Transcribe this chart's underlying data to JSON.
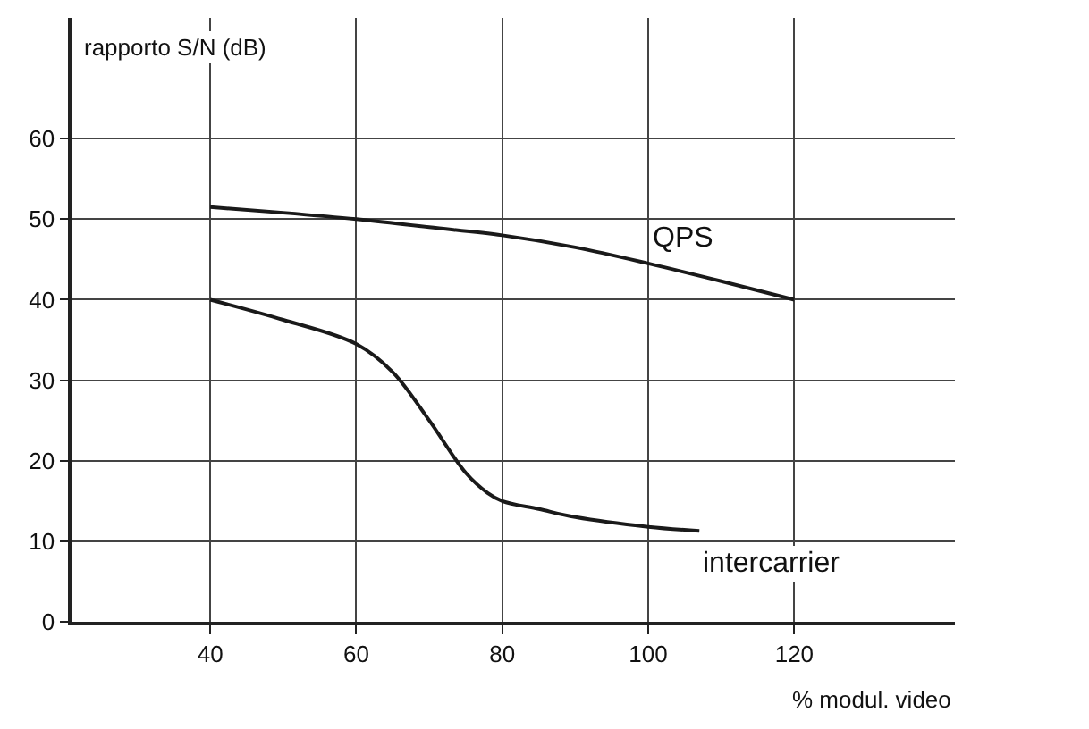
{
  "chart_data": {
    "type": "line",
    "ylabel": "rapporto S/N (dB)",
    "xlabel": "% modul. video",
    "xlim": [
      21,
      142
    ],
    "xticks": [
      40,
      60,
      80,
      100,
      120
    ],
    "ylim": [
      0,
      75
    ],
    "yticks": [
      0,
      10,
      20,
      30,
      40,
      50,
      60
    ],
    "grid": true,
    "legend": false,
    "marker": "none",
    "line_style": "solid",
    "series": [
      {
        "name": "QPS",
        "color": "#1a1a1a",
        "x": [
          40,
          50,
          60,
          70,
          80,
          90,
          100,
          110,
          120
        ],
        "values": [
          51.5,
          50.8,
          50,
          49,
          48,
          46.5,
          44.5,
          42.3,
          40
        ]
      },
      {
        "name": "intercarrier",
        "color": "#1a1a1a",
        "x": [
          40,
          50,
          60,
          65,
          70,
          75,
          78,
          80,
          85,
          90,
          100,
          107
        ],
        "values": [
          40,
          37.5,
          34.5,
          31,
          25,
          18.5,
          16,
          15,
          14,
          13,
          11.8,
          11.3
        ]
      }
    ]
  }
}
